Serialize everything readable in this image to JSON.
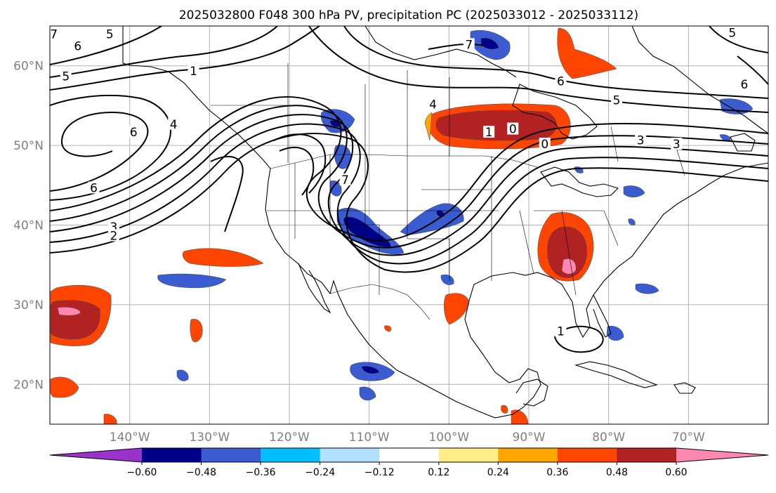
{
  "title": "2025032800 F048 300 hPa PV, precipitation PC (2025033012 - 2025033112)",
  "map": {
    "lon_range": [
      -150,
      -60
    ],
    "lat_range": [
      15,
      65
    ],
    "lat_ticks": [
      {
        "value": 60,
        "label": "60°N"
      },
      {
        "value": 50,
        "label": "50°N"
      },
      {
        "value": 40,
        "label": "40°N"
      },
      {
        "value": 30,
        "label": "30°N"
      },
      {
        "value": 20,
        "label": "20°N"
      }
    ],
    "lon_ticks": [
      {
        "value": -140,
        "label": "140°W"
      },
      {
        "value": -130,
        "label": "130°W"
      },
      {
        "value": -120,
        "label": "120°W"
      },
      {
        "value": -110,
        "label": "110°W"
      },
      {
        "value": -100,
        "label": "100°W"
      },
      {
        "value": -90,
        "label": "90°W"
      },
      {
        "value": -80,
        "label": "80°W"
      },
      {
        "value": -70,
        "label": "70°W"
      }
    ],
    "tick_color": "#808080",
    "grid_color": "#b0b0b0"
  },
  "pv_contours": {
    "color": "#000000",
    "labels": [
      {
        "text": "5",
        "lon": -142.5,
        "lat": 63.8
      },
      {
        "text": "6",
        "lon": -146.5,
        "lat": 62.3
      },
      {
        "text": "7",
        "lon": -149.5,
        "lat": 63.8
      },
      {
        "text": "5",
        "lon": -148,
        "lat": 58.5
      },
      {
        "text": "1",
        "lon": -132,
        "lat": 59.2
      },
      {
        "text": "6",
        "lon": -139.5,
        "lat": 51.5
      },
      {
        "text": "4",
        "lon": -134.5,
        "lat": 52.5
      },
      {
        "text": "6",
        "lon": -144.5,
        "lat": 44.5
      },
      {
        "text": "3",
        "lon": -142,
        "lat": 39.6
      },
      {
        "text": "2",
        "lon": -142,
        "lat": 38.5
      },
      {
        "text": "7",
        "lon": -97.5,
        "lat": 62.5
      },
      {
        "text": "6",
        "lon": -86,
        "lat": 57.9
      },
      {
        "text": "5",
        "lon": -79,
        "lat": 55.5
      },
      {
        "text": "4",
        "lon": -102,
        "lat": 55
      },
      {
        "text": "1",
        "lon": -95,
        "lat": 51.5
      },
      {
        "text": "0",
        "lon": -92,
        "lat": 51.9
      },
      {
        "text": "0",
        "lon": -88,
        "lat": 50
      },
      {
        "text": "3",
        "lon": -76,
        "lat": 50.5
      },
      {
        "text": "3",
        "lon": -71.5,
        "lat": 50
      },
      {
        "text": "5",
        "lon": -64.5,
        "lat": 64
      },
      {
        "text": "6",
        "lon": -63,
        "lat": 57.5
      },
      {
        "text": "1",
        "lon": -86,
        "lat": 26.5
      },
      {
        "text": "7",
        "lon": -113,
        "lat": 45.5
      }
    ]
  },
  "precip_pc": {
    "levels": [
      -0.6,
      -0.48,
      -0.36,
      -0.24,
      -0.12,
      0.12,
      0.24,
      0.36,
      0.48,
      0.6
    ],
    "colors": [
      "#9933cc",
      "#000088",
      "#3b5bd0",
      "#00bfff",
      "#b0e0ff",
      "#ffffff",
      "#ffee88",
      "#ffa500",
      "#ff4500",
      "#b22222",
      "#ff88b0"
    ],
    "colorbar_labels": [
      "−0.60",
      "−0.48",
      "−0.36",
      "−0.24",
      "−0.12",
      "0.12",
      "0.24",
      "0.36",
      "0.48",
      "0.60"
    ]
  }
}
